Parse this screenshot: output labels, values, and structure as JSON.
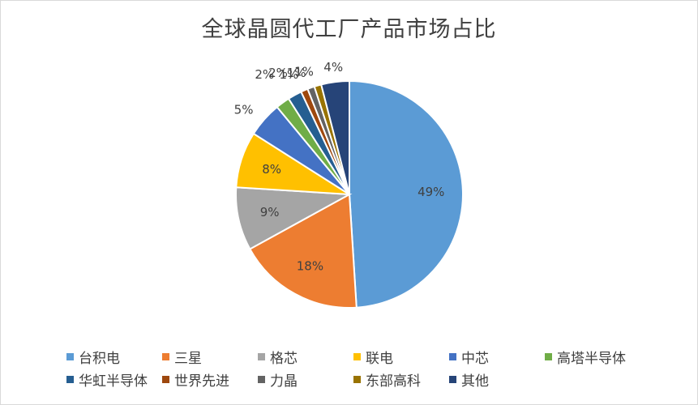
{
  "chart_data": {
    "type": "pie",
    "title": "全球晶圆代工厂产品市场占比",
    "slices": [
      {
        "name": "台积电",
        "value": 49,
        "label": "49%",
        "color": "#5b9bd5"
      },
      {
        "name": "三星",
        "value": 18,
        "label": "18%",
        "color": "#ed7d31"
      },
      {
        "name": "格芯",
        "value": 9,
        "label": "9%",
        "color": "#a5a5a5"
      },
      {
        "name": "联电",
        "value": 8,
        "label": "8%",
        "color": "#ffc000"
      },
      {
        "name": "中芯",
        "value": 5,
        "label": "5%",
        "color": "#4472c4"
      },
      {
        "name": "高塔半导体",
        "value": 2,
        "label": "2%",
        "color": "#70ad47"
      },
      {
        "name": "华虹半导体",
        "value": 2,
        "label": "2%",
        "color": "#255e91"
      },
      {
        "name": "世界先进",
        "value": 1,
        "label": "1%",
        "color": "#9e480e"
      },
      {
        "name": "力晶",
        "value": 1,
        "label": "1%",
        "color": "#636363"
      },
      {
        "name": "东部高科",
        "value": 1,
        "label": "1%",
        "color": "#997300"
      },
      {
        "name": "其他",
        "value": 4,
        "label": "4%",
        "color": "#264478"
      }
    ],
    "legend_position": "bottom"
  }
}
